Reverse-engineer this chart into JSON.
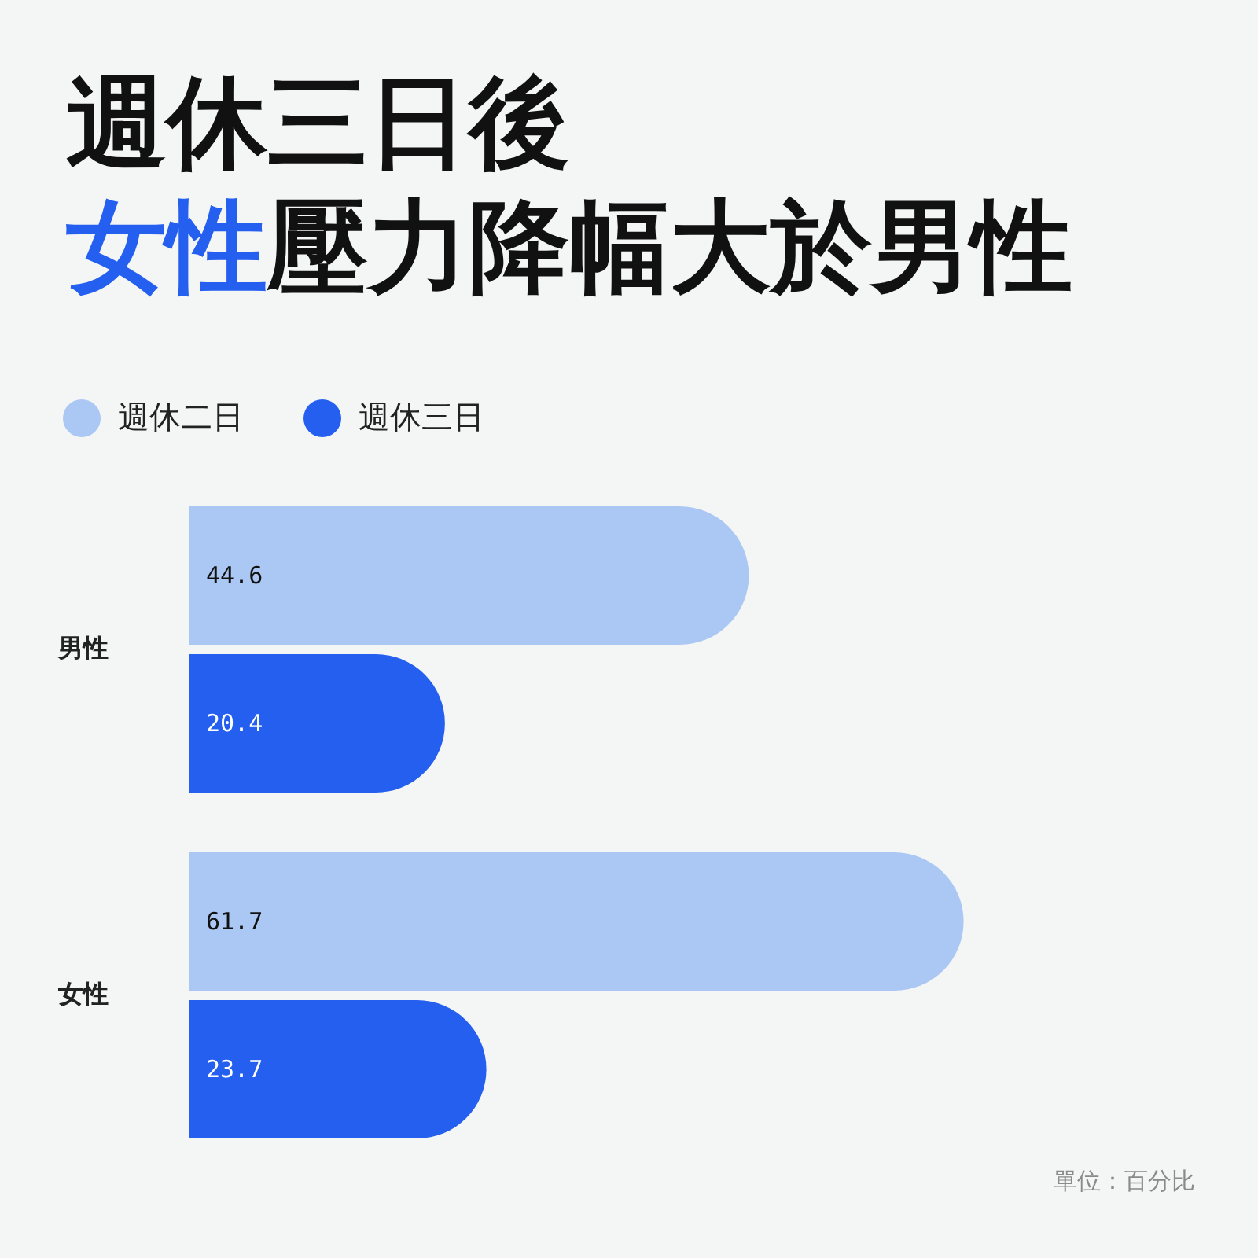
{
  "chart_data": {
    "type": "bar",
    "orientation": "horizontal",
    "title": "週休三日後女性壓力降幅大於男性",
    "categories": [
      "男性",
      "女性"
    ],
    "series": [
      {
        "name": "週休二日",
        "color": "#abc8f4",
        "values": [
          44.6,
          61.7
        ]
      },
      {
        "name": "週休三日",
        "color": "#255ff0",
        "values": [
          20.4,
          23.7
        ]
      }
    ],
    "data_labels": true,
    "legend": "top left",
    "annotations": [
      "單位：百分比"
    ]
  }
}
